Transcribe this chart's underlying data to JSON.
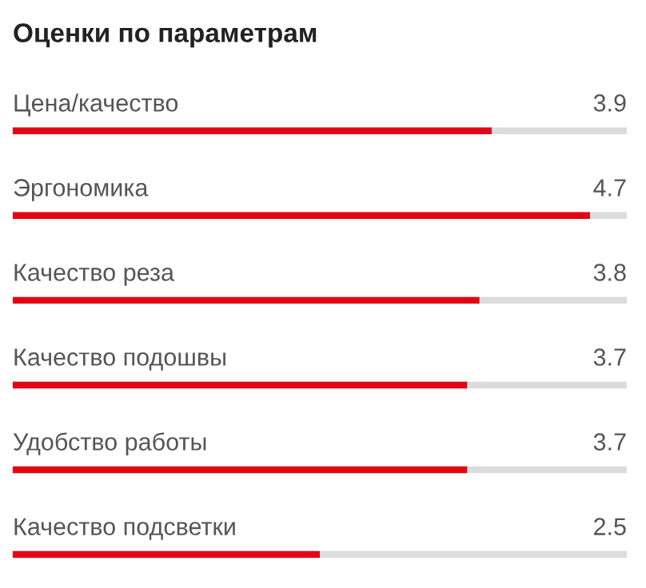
{
  "chart_data": {
    "type": "bar",
    "orientation": "horizontal",
    "title": "Оценки по параметрам",
    "categories": [
      "Цена/качество",
      "Эргономика",
      "Качество реза",
      "Качество подошвы",
      "Удобство работы",
      "Качество подсветки"
    ],
    "series": [
      {
        "color": "#e30613",
        "values": [
          3.9,
          4.7,
          3.8,
          3.7,
          3.7,
          2.5
        ]
      }
    ],
    "data_labels": true,
    "xlim": [
      0,
      5
    ]
  }
}
